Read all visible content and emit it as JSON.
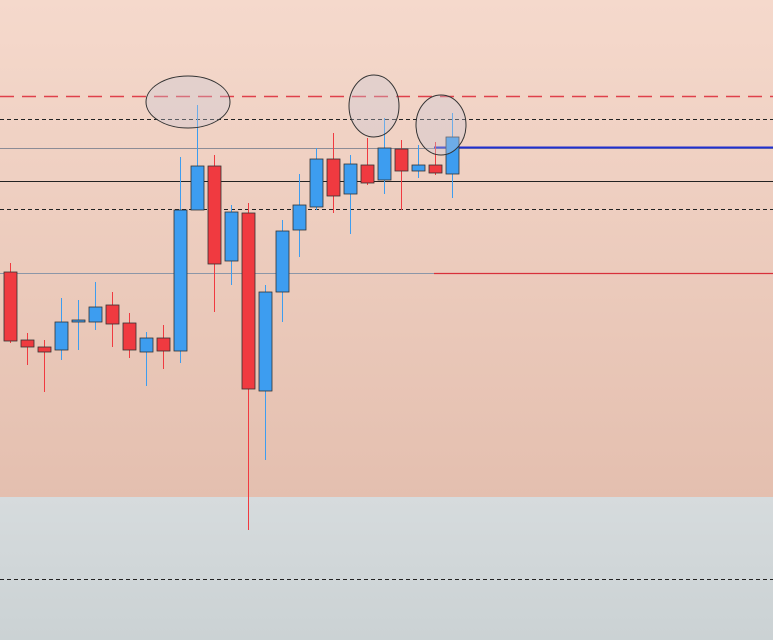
{
  "chart_data": {
    "type": "candlestick",
    "ylim": [
      0,
      640
    ],
    "up_color": "#3d9df0",
    "down_color": "#f03a40",
    "open": [
      368,
      300,
      293,
      290,
      318,
      318,
      335,
      317,
      288,
      302,
      289,
      430,
      474,
      379,
      427,
      249,
      348,
      410,
      433,
      481,
      446,
      475,
      460,
      491,
      469,
      475,
      466
    ],
    "high": [
      377,
      307,
      300,
      342,
      340,
      358,
      348,
      327,
      308,
      315,
      483,
      535,
      485,
      435,
      437,
      355,
      420,
      466,
      492,
      507,
      485,
      502,
      522,
      500,
      495,
      498,
      527
    ],
    "low": [
      297,
      275,
      248,
      280,
      290,
      310,
      293,
      282,
      254,
      271,
      277,
      430,
      328,
      355,
      110,
      180,
      318,
      383,
      430,
      427,
      406,
      455,
      446,
      430,
      462,
      465,
      442
    ],
    "close": [
      299,
      293,
      288,
      318,
      320,
      333,
      316,
      290,
      302,
      289,
      430,
      474,
      376,
      428,
      251,
      348,
      409,
      435,
      481,
      444,
      476,
      457,
      492,
      469,
      475,
      467,
      503
    ],
    "levels": [
      {
        "value": 544,
        "color": "#e0404a",
        "style": "dashed"
      },
      {
        "value": 521,
        "color": "#222222",
        "style": "dotted"
      },
      {
        "value": 492,
        "color": "#8c8c96",
        "style": "solid"
      },
      {
        "value": 459,
        "color": "#222222",
        "style": "solid"
      },
      {
        "value": 431,
        "color": "#222222",
        "style": "dotted"
      },
      {
        "value": 367,
        "color": "#8c96a8",
        "style": "solid"
      },
      {
        "value": 61,
        "color": "#222222",
        "style": "dotted"
      }
    ],
    "rays": [
      {
        "value": 493,
        "color": "#1f2fd0"
      },
      {
        "value": 367,
        "color": "#d8303a"
      }
    ]
  }
}
